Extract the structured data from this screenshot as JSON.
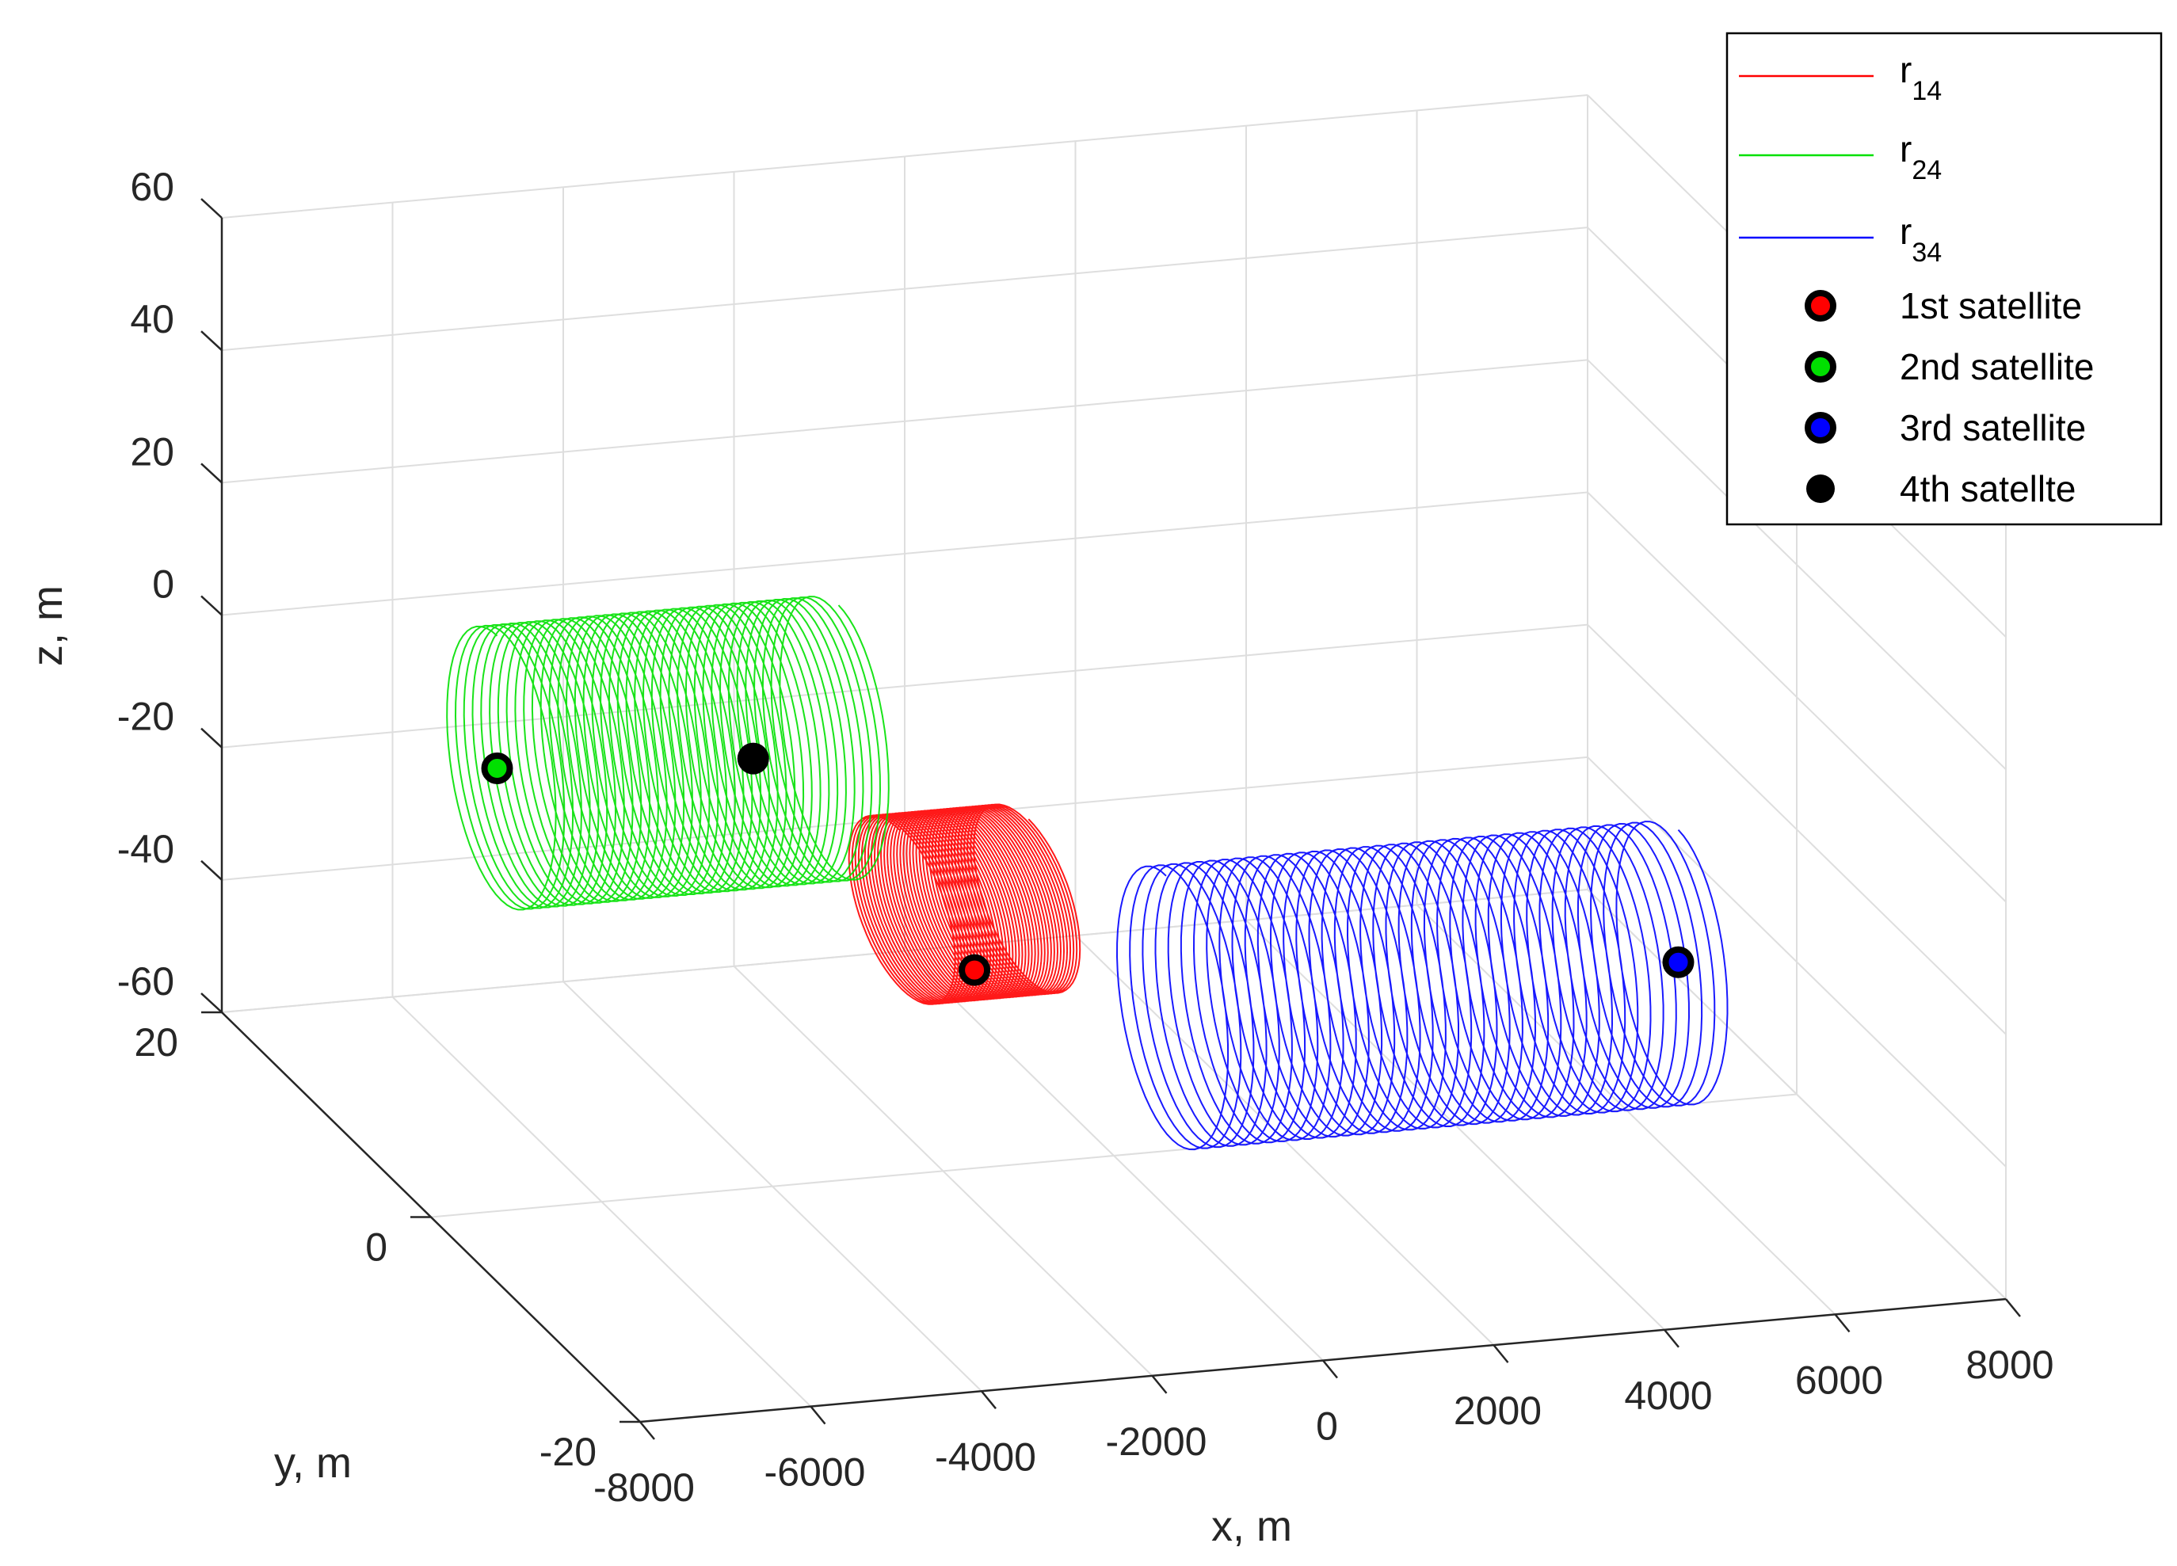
{
  "chart_data": {
    "type": "line",
    "projection": "3d",
    "xlabel": "x, m",
    "ylabel": "y, m",
    "zlabel": "z, m",
    "xlim": [
      -8000,
      8000
    ],
    "ylim": [
      -20,
      20
    ],
    "zlim": [
      -60,
      60
    ],
    "x_ticks": [
      -8000,
      -6000,
      -4000,
      -2000,
      0,
      2000,
      4000,
      6000,
      8000
    ],
    "y_ticks": [
      -20,
      0,
      20
    ],
    "z_ticks": [
      -60,
      -40,
      -20,
      0,
      20,
      40,
      60
    ],
    "x_tick_labels": [
      "-8000",
      "-6000",
      "-4000",
      "-2000",
      "0",
      "2000",
      "4000",
      "6000",
      "8000"
    ],
    "y_tick_labels": [
      "-20",
      "0",
      "20"
    ],
    "z_tick_labels": [
      "-60",
      "-40",
      "-20",
      "0",
      "20",
      "40",
      "60"
    ],
    "grid": true,
    "legend_position": "top-right",
    "series": [
      {
        "name": "r",
        "subscript": "14",
        "color": "#ff0000",
        "kind": "helix",
        "x_range": [
          -2500,
          -1000
        ],
        "center_y": 0,
        "center_z": -20,
        "radius_y": 5,
        "radius_z": 12
      },
      {
        "name": "r",
        "subscript": "24",
        "color": "#00e000",
        "kind": "helix",
        "x_range": [
          -6000,
          -2000
        ],
        "center_y": 10,
        "center_z": -10,
        "radius_y": 5,
        "radius_z": 20
      },
      {
        "name": "r",
        "subscript": "34",
        "color": "#0000ff",
        "kind": "helix",
        "x_range": [
          0,
          6000
        ],
        "center_y": -5,
        "center_z": -30,
        "radius_y": 5,
        "radius_z": 20
      }
    ],
    "markers": [
      {
        "name": "1st satellite",
        "color": "#ff0000",
        "x": -2000,
        "y": -3,
        "z": -25
      },
      {
        "name": "2nd satellite",
        "color": "#00e000",
        "x": -6000,
        "y": 10,
        "z": -10
      },
      {
        "name": "3rd satellite",
        "color": "#0000ff",
        "x": 6000,
        "y": -5,
        "z": -30
      },
      {
        "name": "4th satellte",
        "color": "#000000",
        "x": -3000,
        "y": 10,
        "z": -12
      }
    ]
  }
}
